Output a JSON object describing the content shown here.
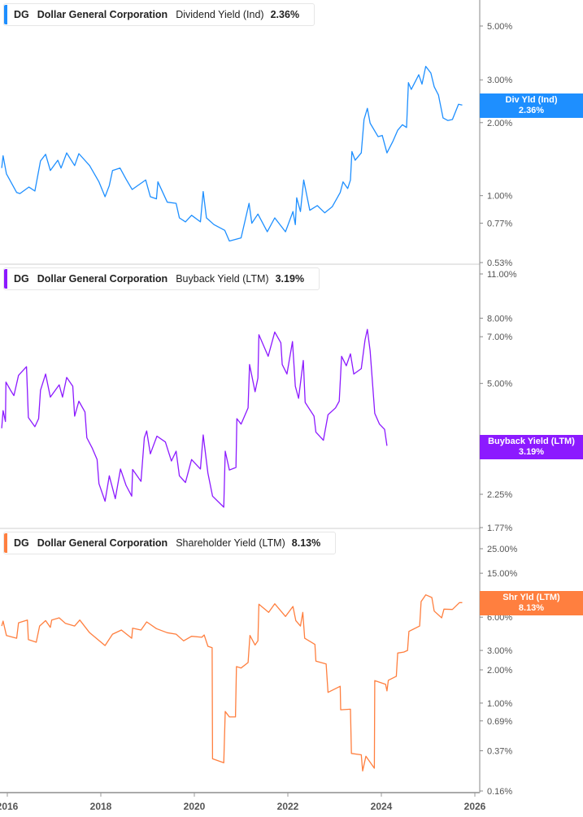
{
  "chart_data": [
    {
      "type": "line",
      "ticker": "DG",
      "company": "Dollar General Corporation",
      "metric": "Dividend Yield (Ind)",
      "current_value": "2.36%",
      "tag_label": "Div Yld (Ind)",
      "tag_value": "2.36%",
      "color": "#1e8fff",
      "yscale": "log",
      "ylim": [
        0.53,
        6.0
      ],
      "yticks": [
        {
          "v": 5,
          "label": "5.00%"
        },
        {
          "v": 3,
          "label": "3.00%"
        },
        {
          "v": 2,
          "label": "2.00%"
        },
        {
          "v": 1,
          "label": "1.00%"
        },
        {
          "v": 0.77,
          "label": "0.77%"
        },
        {
          "v": 0.53,
          "label": "0.53%"
        }
      ],
      "series": [
        {
          "x": [
            2015.88,
            2015.91,
            2015.98,
            2016.2,
            2016.27,
            2016.46,
            2016.59,
            2016.71,
            2016.82,
            2016.92,
            2017.08,
            2017.15,
            2017.27,
            2017.44,
            2017.53,
            2017.76,
            2017.96,
            2018.09,
            2018.18,
            2018.25,
            2018.41,
            2018.54,
            2018.67,
            2018.96,
            2019.06,
            2019.19,
            2019.22,
            2019.42,
            2019.61,
            2019.68,
            2019.81,
            2019.94,
            2020.13,
            2020.19,
            2020.26,
            2020.42,
            2020.65,
            2020.75,
            2021.0,
            2021.17,
            2021.23,
            2021.36,
            2021.56,
            2021.72,
            2021.95,
            2022.11,
            2022.16,
            2022.19,
            2022.27,
            2022.34,
            2022.47,
            2022.63,
            2022.79,
            2022.95,
            2023.12,
            2023.18,
            2023.28,
            2023.34,
            2023.37,
            2023.44,
            2023.57,
            2023.63,
            2023.7,
            2023.76,
            2023.93,
            2024.02,
            2024.12,
            2024.25,
            2024.35,
            2024.45,
            2024.54,
            2024.58,
            2024.64,
            2024.8,
            2024.87,
            2024.95,
            2025.06,
            2025.13,
            2025.22,
            2025.32,
            2025.42,
            2025.52,
            2025.65,
            2025.73
          ],
          "y": [
            1.3,
            1.46,
            1.23,
            1.03,
            1.02,
            1.085,
            1.045,
            1.39,
            1.48,
            1.27,
            1.4,
            1.3,
            1.5,
            1.33,
            1.49,
            1.33,
            1.14,
            0.99,
            1.1,
            1.27,
            1.3,
            1.17,
            1.06,
            1.16,
            0.99,
            0.97,
            1.14,
            0.94,
            0.93,
            0.81,
            0.78,
            0.83,
            0.78,
            1.04,
            0.81,
            0.76,
            0.72,
            0.65,
            0.67,
            0.93,
            0.77,
            0.84,
            0.71,
            0.81,
            0.71,
            0.86,
            0.76,
            0.98,
            0.86,
            1.16,
            0.87,
            0.91,
            0.85,
            0.9,
            1.03,
            1.14,
            1.07,
            1.16,
            1.52,
            1.4,
            1.5,
            2.06,
            2.29,
            1.99,
            1.75,
            1.77,
            1.5,
            1.68,
            1.86,
            1.96,
            1.91,
            2.92,
            2.74,
            3.15,
            2.88,
            3.41,
            3.2,
            2.81,
            2.6,
            2.09,
            2.04,
            2.06,
            2.38,
            2.36
          ]
        }
      ]
    },
    {
      "type": "line",
      "ticker": "DG",
      "company": "Dollar General Corporation",
      "metric": "Buyback Yield (LTM)",
      "current_value": "3.19%",
      "tag_label": "Buyback Yield (LTM)",
      "tag_value": "3.19%",
      "color": "#8c1aff",
      "yscale": "log",
      "ylim": [
        1.77,
        11.0
      ],
      "yticks": [
        {
          "v": 11,
          "label": "11.00%"
        },
        {
          "v": 8,
          "label": "8.00%"
        },
        {
          "v": 7,
          "label": "7.00%"
        },
        {
          "v": 5,
          "label": "5.00%"
        },
        {
          "v": 3,
          "label": "3.00%"
        },
        {
          "v": 2.25,
          "label": "2.25%"
        },
        {
          "v": 1.77,
          "label": "1.77%"
        }
      ],
      "series": [
        {
          "x": [
            2015.88,
            2015.91,
            2015.96,
            2015.97,
            2016.07,
            2016.14,
            2016.24,
            2016.41,
            2016.45,
            2016.59,
            2016.67,
            2016.71,
            2016.82,
            2016.92,
            2017.11,
            2017.18,
            2017.27,
            2017.4,
            2017.44,
            2017.53,
            2017.66,
            2017.7,
            2017.82,
            2017.92,
            2017.96,
            2018.09,
            2018.18,
            2018.31,
            2018.42,
            2018.54,
            2018.66,
            2018.68,
            2018.86,
            2018.93,
            2018.98,
            2019.06,
            2019.2,
            2019.38,
            2019.51,
            2019.61,
            2019.68,
            2019.81,
            2019.94,
            2020.13,
            2020.19,
            2020.29,
            2020.39,
            2020.63,
            2020.66,
            2020.75,
            2020.89,
            2020.91,
            2021.0,
            2021.15,
            2021.18,
            2021.3,
            2021.36,
            2021.38,
            2021.58,
            2021.72,
            2021.85,
            2021.88,
            2021.98,
            2022.1,
            2022.16,
            2022.23,
            2022.33,
            2022.37,
            2022.56,
            2022.6,
            2022.76,
            2022.86,
            2023.02,
            2023.1,
            2023.15,
            2023.25,
            2023.34,
            2023.41,
            2023.57,
            2023.65,
            2023.7,
            2023.76,
            2023.86,
            2023.96,
            2024.07,
            2024.12
          ],
          "y": [
            3.62,
            4.11,
            3.8,
            5.05,
            4.76,
            4.58,
            5.3,
            5.64,
            3.91,
            3.66,
            3.88,
            4.76,
            5.35,
            4.53,
            4.95,
            4.53,
            5.22,
            4.9,
            3.95,
            4.4,
            4.07,
            3.38,
            3.13,
            2.89,
            2.43,
            2.14,
            2.57,
            2.18,
            2.7,
            2.4,
            2.22,
            2.69,
            2.47,
            3.38,
            3.55,
            3.01,
            3.42,
            3.28,
            2.86,
            3.07,
            2.57,
            2.45,
            2.89,
            2.7,
            3.45,
            2.62,
            2.22,
            2.05,
            3.07,
            2.68,
            2.73,
            3.88,
            3.73,
            4.19,
            5.73,
            4.71,
            5.2,
            7.1,
            6.08,
            7.24,
            6.7,
            5.73,
            5.35,
            6.76,
            4.9,
            4.49,
            5.9,
            4.36,
            3.95,
            3.52,
            3.32,
            3.99,
            4.19,
            4.4,
            6.08,
            5.68,
            6.19,
            5.35,
            5.56,
            6.83,
            7.38,
            6.32,
            4.03,
            3.73,
            3.59,
            3.19
          ]
        }
      ]
    },
    {
      "type": "line",
      "ticker": "DG",
      "company": "Dollar General Corporation",
      "metric": "Shareholder Yield (LTM)",
      "current_value": "8.13%",
      "tag_label": "Shr Yld (LTM)",
      "tag_value": "8.13%",
      "color": "#ff7f3f",
      "yscale": "log",
      "ylim": [
        0.16,
        25.0
      ],
      "yticks": [
        {
          "v": 25,
          "label": "25.00%"
        },
        {
          "v": 15,
          "label": "15.00%"
        },
        {
          "v": 8,
          "label": "8.00%"
        },
        {
          "v": 6,
          "label": "6.00%"
        },
        {
          "v": 3,
          "label": "3.00%"
        },
        {
          "v": 2,
          "label": "2.00%"
        },
        {
          "v": 1,
          "label": "1.00%"
        },
        {
          "v": 0.69,
          "label": "0.69%"
        },
        {
          "v": 0.37,
          "label": "0.37%"
        },
        {
          "v": 0.16,
          "label": "0.16%"
        }
      ],
      "series": [
        {
          "x": [
            2015.88,
            2015.91,
            2015.98,
            2016.2,
            2016.24,
            2016.43,
            2016.45,
            2016.62,
            2016.69,
            2016.82,
            2016.92,
            2016.95,
            2017.11,
            2017.24,
            2017.44,
            2017.55,
            2017.76,
            2018.09,
            2018.25,
            2018.44,
            2018.66,
            2018.68,
            2018.86,
            2018.98,
            2019.19,
            2019.42,
            2019.61,
            2019.77,
            2019.94,
            2020.16,
            2020.21,
            2020.29,
            2020.38,
            2020.39,
            2020.63,
            2020.66,
            2020.75,
            2020.88,
            2020.9,
            2021.0,
            2021.15,
            2021.19,
            2021.3,
            2021.36,
            2021.38,
            2021.59,
            2021.72,
            2021.95,
            2022.11,
            2022.17,
            2022.27,
            2022.32,
            2022.36,
            2022.58,
            2022.6,
            2022.82,
            2022.86,
            2023.12,
            2023.13,
            2023.34,
            2023.36,
            2023.57,
            2023.6,
            2023.67,
            2023.85,
            2023.86,
            2024.09,
            2024.12,
            2024.15,
            2024.32,
            2024.35,
            2024.48,
            2024.56,
            2024.59,
            2024.82,
            2024.85,
            2024.95,
            2025.08,
            2025.13,
            2025.29,
            2025.34,
            2025.52,
            2025.67,
            2025.73
          ],
          "y": [
            4.99,
            5.53,
            4.1,
            3.87,
            5.34,
            5.65,
            3.76,
            3.56,
            4.99,
            5.59,
            4.85,
            5.65,
            5.92,
            5.28,
            4.99,
            5.65,
            4.34,
            3.32,
            4.21,
            4.59,
            3.87,
            4.77,
            4.59,
            5.44,
            4.72,
            4.34,
            4.21,
            3.66,
            4.03,
            3.95,
            4.14,
            3.27,
            3.17,
            0.313,
            0.288,
            0.84,
            0.75,
            0.75,
            2.14,
            2.08,
            2.33,
            4.1,
            3.36,
            3.66,
            7.85,
            6.63,
            7.93,
            6.09,
            7.5,
            5.59,
            4.99,
            6.63,
            3.87,
            3.4,
            2.4,
            2.26,
            1.25,
            1.42,
            0.87,
            0.88,
            0.35,
            0.34,
            0.243,
            0.33,
            0.257,
            1.6,
            1.48,
            1.29,
            1.61,
            1.75,
            2.84,
            2.9,
            3.0,
            4.46,
            4.99,
            8.31,
            9.56,
            9.04,
            6.81,
            5.92,
            7.09,
            7.05,
            8.13,
            8.13
          ]
        }
      ]
    }
  ],
  "xaxis": {
    "ticks": [
      "2016",
      "2018",
      "2020",
      "2022",
      "2024",
      "2026"
    ]
  }
}
